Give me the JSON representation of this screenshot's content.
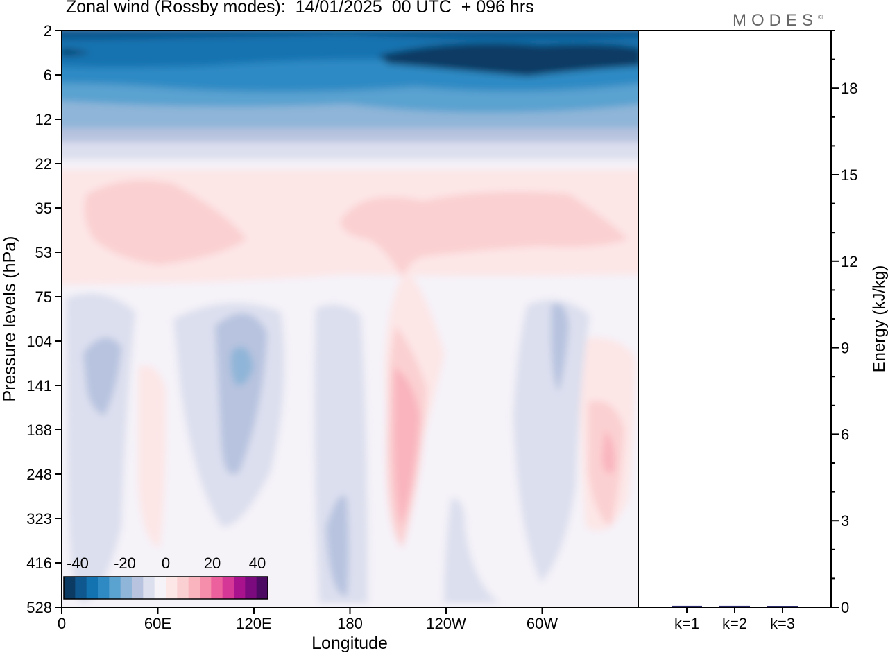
{
  "title": "Zonal wind (Rossby modes):  14/01/2025  00 UTC  + 096 hrs",
  "logo": "MODES",
  "logo_mark": "©",
  "chart_data": [
    {
      "type": "heatmap",
      "title": "Zonal wind (Rossby modes):  14/01/2025  00 UTC  + 096 hrs",
      "xlabel": "Longitude",
      "ylabel": "Pressure levels (hPa)",
      "x_ticks": [
        "0",
        "60E",
        "120E",
        "180",
        "120W",
        "60W"
      ],
      "x_tick_degrees": [
        0,
        60,
        120,
        180,
        240,
        300
      ],
      "xlim": [
        0,
        360
      ],
      "y_ticks": [
        "2",
        "6",
        "12",
        "22",
        "35",
        "53",
        "75",
        "104",
        "141",
        "188",
        "248",
        "323",
        "416",
        "528"
      ],
      "colorbar_ticks": [
        "-40",
        "-20",
        "0",
        "20",
        "40"
      ],
      "colorbar_colors": [
        "#0b3a63",
        "#0f578f",
        "#1273b0",
        "#2f8ac4",
        "#5aa2d0",
        "#8fb5d8",
        "#b7c3df",
        "#dcdfee",
        "#f5f2f8",
        "#fde6e6",
        "#fbd0d2",
        "#f9b4bd",
        "#f58eaa",
        "#ec609d",
        "#d43795",
        "#a8128c",
        "#7b0a7f",
        "#4d0a62"
      ],
      "features": [
        {
          "lon": 180,
          "level": 4,
          "value": -35
        },
        {
          "lon": 310,
          "level": 5,
          "value": -42
        },
        {
          "lon": 60,
          "level": 40,
          "value": 8
        },
        {
          "lon": 265,
          "level": 40,
          "value": 8
        },
        {
          "lon": 30,
          "level": 120,
          "value": -12
        },
        {
          "lon": 112,
          "level": 120,
          "value": -18
        },
        {
          "lon": 212,
          "level": 170,
          "value": 22
        },
        {
          "lon": 345,
          "level": 220,
          "value": 15
        },
        {
          "lon": 290,
          "level": 120,
          "value": -10
        },
        {
          "lon": 175,
          "level": 380,
          "value": -8
        }
      ]
    },
    {
      "type": "bar",
      "ylabel": "Energy (kJ/kg)",
      "categories": [
        "k=1",
        "k=2",
        "k=3"
      ],
      "values": [
        0.05,
        0.05,
        0.03
      ],
      "y_ticks": [
        "0",
        "3",
        "6",
        "9",
        "12",
        "15",
        "18"
      ],
      "ylim": [
        0,
        20
      ]
    }
  ]
}
